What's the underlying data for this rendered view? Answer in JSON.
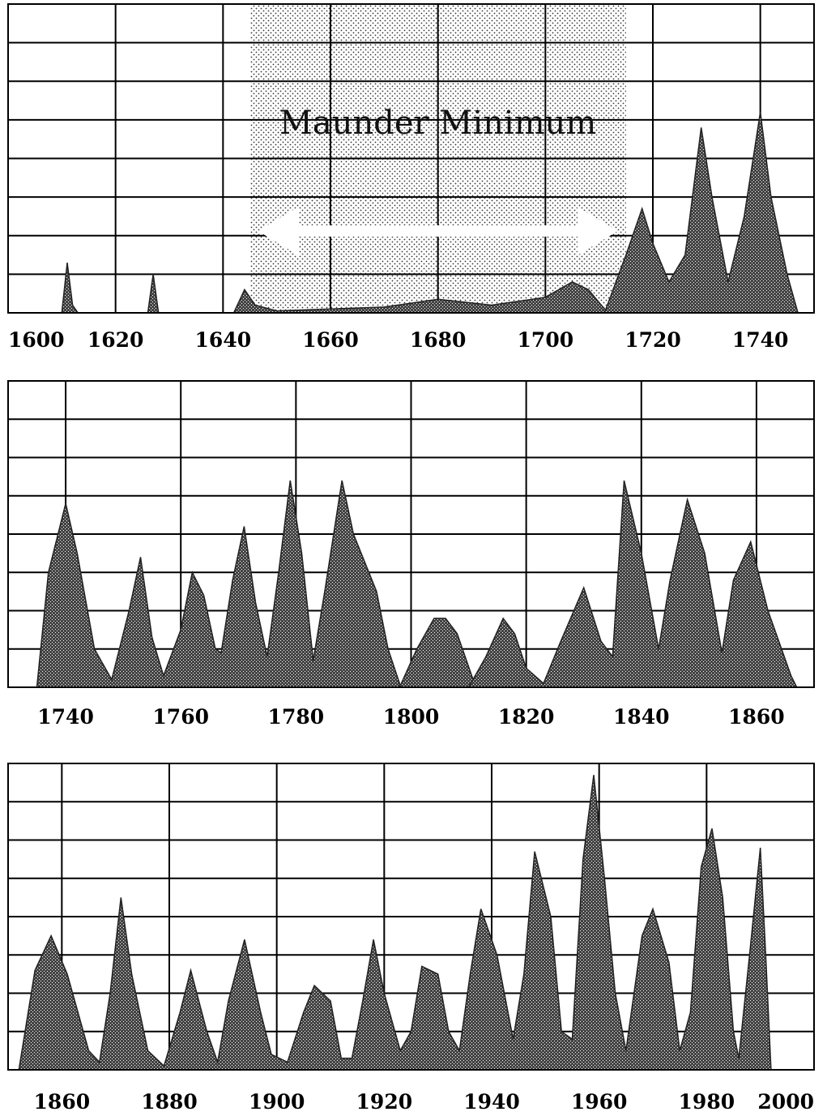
{
  "chart_data": [
    {
      "type": "area",
      "title": "",
      "xlabel": "",
      "ylabel": "",
      "x_ticks": [
        "1600",
        "1620",
        "1640",
        "1660",
        "1680",
        "1700",
        "1720",
        "1740"
      ],
      "xlim": [
        1600,
        1750
      ],
      "ylim": [
        0,
        8
      ],
      "grid": true,
      "annotation": {
        "text": "Maunder Minimum",
        "from": 1645,
        "to": 1715
      },
      "series": [
        {
          "values": [
            [
              1610,
              0
            ],
            [
              1611,
              1.3
            ],
            [
              1612,
              0.2
            ],
            [
              1613,
              0
            ]
          ]
        },
        {
          "values": [
            [
              1626,
              0
            ],
            [
              1627,
              1.0
            ],
            [
              1628,
              0
            ]
          ]
        },
        {
          "values": [
            [
              1642,
              0
            ],
            [
              1644,
              0.6
            ],
            [
              1646,
              0.2
            ],
            [
              1650,
              0.05
            ],
            [
              1660,
              0.1
            ],
            [
              1670,
              0.15
            ],
            [
              1680,
              0.35
            ],
            [
              1690,
              0.2
            ],
            [
              1700,
              0.4
            ],
            [
              1705,
              0.8
            ],
            [
              1708,
              0.6
            ],
            [
              1711,
              0.1
            ],
            [
              1712,
              0
            ]
          ]
        },
        {
          "values": [
            [
              1711,
              0
            ],
            [
              1715,
              1.5
            ],
            [
              1718,
              2.7
            ],
            [
              1720,
              1.8
            ],
            [
              1723,
              0.8
            ],
            [
              1726,
              1.5
            ],
            [
              1729,
              4.8
            ],
            [
              1731,
              3.0
            ],
            [
              1734,
              0.8
            ],
            [
              1737,
              2.5
            ],
            [
              1740,
              5.2
            ],
            [
              1742,
              3.0
            ],
            [
              1745,
              1.0
            ],
            [
              1747,
              0
            ]
          ]
        }
      ]
    },
    {
      "type": "area",
      "title": "",
      "xlabel": "",
      "ylabel": "",
      "x_ticks": [
        "1740",
        "1760",
        "1780",
        "1800",
        "1820",
        "1840",
        "1860"
      ],
      "xlim": [
        1730,
        1870
      ],
      "ylim": [
        0,
        8
      ],
      "grid": true,
      "series": [
        {
          "values": [
            [
              1735,
              0
            ],
            [
              1737,
              3.0
            ],
            [
              1740,
              4.8
            ],
            [
              1742,
              3.5
            ],
            [
              1745,
              1.0
            ],
            [
              1748,
              0.2
            ],
            [
              1751,
              2.0
            ],
            [
              1753,
              3.4
            ],
            [
              1755,
              1.3
            ],
            [
              1757,
              0.3
            ],
            [
              1760,
              1.5
            ],
            [
              1762,
              3.0
            ],
            [
              1764,
              2.4
            ],
            [
              1766,
              1.0
            ],
            [
              1767,
              0.9
            ],
            [
              1769,
              2.8
            ],
            [
              1771,
              4.2
            ],
            [
              1773,
              2.2
            ],
            [
              1775,
              0.8
            ],
            [
              1777,
              3.0
            ],
            [
              1779,
              5.4
            ],
            [
              1781,
              3.5
            ],
            [
              1783,
              0.7
            ],
            [
              1785,
              2.5
            ],
            [
              1788,
              5.4
            ],
            [
              1790,
              4.0
            ],
            [
              1794,
              2.5
            ],
            [
              1796,
              1.0
            ],
            [
              1798,
              0.1
            ]
          ]
        },
        {
          "values": [
            [
              1798,
              0
            ],
            [
              1801,
              1.0
            ],
            [
              1804,
              1.8
            ],
            [
              1806,
              1.8
            ],
            [
              1808,
              1.4
            ],
            [
              1811,
              0.1
            ]
          ]
        },
        {
          "values": [
            [
              1810,
              0
            ],
            [
              1813,
              0.8
            ],
            [
              1816,
              1.8
            ],
            [
              1818,
              1.4
            ],
            [
              1820,
              0.5
            ],
            [
              1823,
              0.1
            ],
            [
              1826,
              1.2
            ],
            [
              1830,
              2.6
            ],
            [
              1833,
              1.2
            ],
            [
              1835,
              0.8
            ],
            [
              1837,
              5.4
            ],
            [
              1840,
              3.5
            ],
            [
              1843,
              1.0
            ],
            [
              1845,
              2.8
            ],
            [
              1848,
              4.9
            ],
            [
              1851,
              3.5
            ],
            [
              1854,
              0.9
            ],
            [
              1856,
              2.8
            ],
            [
              1859,
              3.8
            ],
            [
              1862,
              2.0
            ],
            [
              1866,
              0.3
            ],
            [
              1867,
              0
            ]
          ]
        }
      ]
    },
    {
      "type": "area",
      "title": "",
      "xlabel": "",
      "ylabel": "",
      "x_ticks": [
        "1860",
        "1880",
        "1900",
        "1920",
        "1940",
        "1960",
        "1980",
        "2000"
      ],
      "xlim": [
        1850,
        2000
      ],
      "ylim": [
        0,
        8
      ],
      "grid": true,
      "series": [
        {
          "values": [
            [
              1852,
              0
            ],
            [
              1855,
              2.6
            ],
            [
              1858,
              3.5
            ],
            [
              1861,
              2.5
            ],
            [
              1865,
              0.5
            ],
            [
              1867,
              0.2
            ],
            [
              1869,
              2.0
            ],
            [
              1871,
              4.5
            ],
            [
              1873,
              2.5
            ],
            [
              1876,
              0.5
            ],
            [
              1879,
              0.1
            ],
            [
              1882,
              1.5
            ],
            [
              1884,
              2.6
            ],
            [
              1887,
              1.0
            ],
            [
              1889,
              0.2
            ],
            [
              1891,
              1.8
            ],
            [
              1894,
              3.4
            ],
            [
              1897,
              1.5
            ],
            [
              1899,
              0.4
            ],
            [
              1902,
              0.2
            ],
            [
              1905,
              1.5
            ],
            [
              1907,
              2.2
            ],
            [
              1910,
              1.8
            ],
            [
              1912,
              0.3
            ],
            [
              1914,
              0.3
            ],
            [
              1916,
              1.8
            ],
            [
              1918,
              3.4
            ],
            [
              1920,
              2.0
            ],
            [
              1923,
              0.5
            ],
            [
              1925,
              1.0
            ],
            [
              1927,
              2.7
            ],
            [
              1930,
              2.5
            ],
            [
              1932,
              1.0
            ],
            [
              1934,
              0.5
            ],
            [
              1936,
              2.5
            ],
            [
              1938,
              4.2
            ],
            [
              1941,
              3.0
            ],
            [
              1944,
              0.8
            ],
            [
              1946,
              2.5
            ],
            [
              1948,
              5.7
            ],
            [
              1951,
              4.0
            ],
            [
              1953,
              1.0
            ],
            [
              1955,
              0.8
            ],
            [
              1957,
              5.5
            ],
            [
              1959,
              7.7
            ],
            [
              1961,
              5.0
            ],
            [
              1963,
              2.0
            ],
            [
              1965,
              0.5
            ],
            [
              1968,
              3.5
            ],
            [
              1970,
              4.2
            ],
            [
              1973,
              2.8
            ],
            [
              1975,
              0.5
            ],
            [
              1977,
              1.5
            ],
            [
              1979,
              5.3
            ],
            [
              1981,
              6.3
            ],
            [
              1983,
              4.5
            ],
            [
              1985,
              1.0
            ],
            [
              1986,
              0.3
            ],
            [
              1988,
              3.0
            ],
            [
              1990,
              5.8
            ],
            [
              1991,
              3.0
            ],
            [
              1992,
              0
            ]
          ]
        }
      ]
    }
  ]
}
